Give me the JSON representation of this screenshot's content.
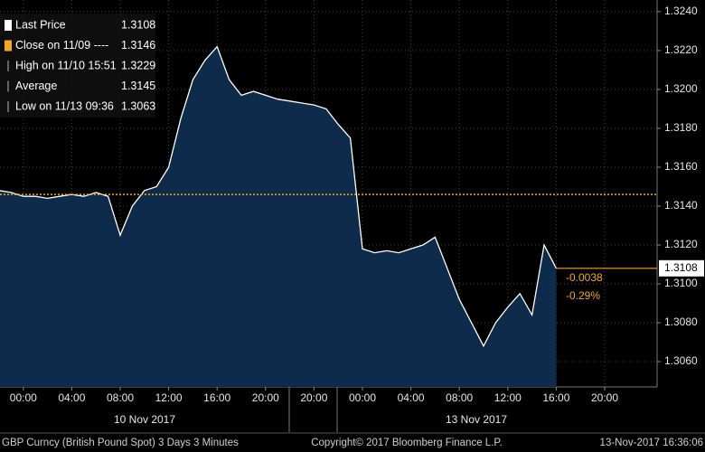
{
  "chart_data": {
    "type": "area",
    "categories": [
      null,
      null,
      "00:00",
      null,
      null,
      null,
      "04:00",
      null,
      null,
      null,
      "08:00",
      null,
      null,
      null,
      "12:00",
      null,
      null,
      null,
      "16:00",
      null,
      null,
      null,
      "20:00",
      null,
      null,
      null,
      "20:00",
      null,
      null,
      null,
      "00:00",
      null,
      null,
      null,
      "04:00",
      null,
      null,
      null,
      "08:00",
      null,
      null,
      null,
      "12:00",
      null,
      null,
      null,
      "16:00",
      null,
      null,
      null,
      "20:00",
      null,
      null,
      null
    ],
    "series": [
      {
        "name": "Last Price",
        "color": "#ffffff",
        "values": [
          1.3148,
          1.3147,
          1.3145,
          1.3145,
          1.3144,
          1.3145,
          1.3146,
          1.3145,
          1.3147,
          1.3145,
          1.3125,
          1.314,
          1.3148,
          1.315,
          1.316,
          1.3185,
          1.3205,
          1.3215,
          1.3222,
          1.3205,
          1.3197,
          1.3199,
          1.3197,
          1.3195,
          1.3194,
          1.3193,
          1.3192,
          1.319,
          1.3182,
          1.3175,
          1.3118,
          1.3116,
          1.3117,
          1.3116,
          1.3118,
          1.312,
          1.3124,
          1.3108,
          1.3092,
          1.308,
          1.3068,
          1.308,
          1.3088,
          1.3095,
          1.3084,
          1.312,
          1.3108,
          null,
          null,
          null,
          null,
          null,
          null,
          null
        ]
      }
    ],
    "ylim": [
      1.3047,
      1.3246
    ],
    "yticks": [
      {
        "value": 1.306,
        "label": "1.3060"
      },
      {
        "value": 1.308,
        "label": "1.3080"
      },
      {
        "value": 1.31,
        "label": "1.3100"
      },
      {
        "value": 1.312,
        "label": "1.3120"
      },
      {
        "value": 1.314,
        "label": "1.3140"
      },
      {
        "value": 1.316,
        "label": "1.3160"
      },
      {
        "value": 1.318,
        "label": "1.3180"
      },
      {
        "value": 1.32,
        "label": "1.3200"
      },
      {
        "value": 1.322,
        "label": "1.3220"
      },
      {
        "value": 1.324,
        "label": "1.3240"
      }
    ],
    "grid": true,
    "date_labels": [
      "10 Nov 2017",
      "13 Nov 2017"
    ],
    "legend": [
      {
        "label": "Last Price",
        "value": 1.3108
      },
      {
        "label": "Close on 11/09 ----",
        "value": 1.3146
      },
      {
        "label": "High on 11/10 15:51",
        "value": 1.3229
      },
      {
        "label": "Average",
        "value": 1.3145
      },
      {
        "label": "Low on 11/13 09:36",
        "value": 1.3063
      }
    ],
    "annotations": [
      "-0.0038",
      "-0.29%"
    ],
    "footer": [
      "GBP Curncy (British Pound Spot) 3 Days 3 Minutes",
      "Copyright© 2017 Bloomberg Finance L.P.",
      "13-Nov-2017 16:36:06"
    ]
  }
}
